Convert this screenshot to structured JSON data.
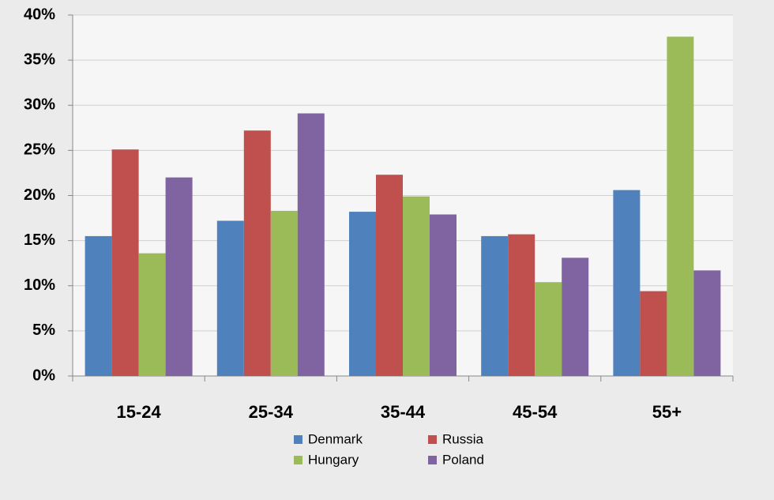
{
  "chart_data": {
    "type": "bar",
    "categories": [
      "15-24",
      "25-34",
      "35-44",
      "45-54",
      "55+"
    ],
    "series": [
      {
        "name": "Denmark",
        "color": "#4f81bd",
        "values": [
          15.5,
          17.2,
          18.2,
          15.5,
          20.6
        ]
      },
      {
        "name": "Russia",
        "color": "#c0504d",
        "values": [
          25.1,
          27.2,
          22.3,
          15.7,
          9.4
        ]
      },
      {
        "name": "Hungary",
        "color": "#9bbb59",
        "values": [
          13.6,
          18.3,
          19.9,
          10.4,
          37.6
        ]
      },
      {
        "name": "Poland",
        "color": "#8064a2",
        "values": [
          22.0,
          29.1,
          17.9,
          13.1,
          11.7
        ]
      }
    ],
    "ylim": [
      0,
      40
    ],
    "yticks": [
      {
        "value": 0,
        "label": "0%"
      },
      {
        "value": 5,
        "label": "5%"
      },
      {
        "value": 10,
        "label": "10%"
      },
      {
        "value": 15,
        "label": "15%"
      },
      {
        "value": 20,
        "label": "20%"
      },
      {
        "value": 25,
        "label": "25%"
      },
      {
        "value": 30,
        "label": "30%"
      },
      {
        "value": 35,
        "label": "35%"
      },
      {
        "value": 40,
        "label": "40%"
      }
    ],
    "grid": true
  }
}
